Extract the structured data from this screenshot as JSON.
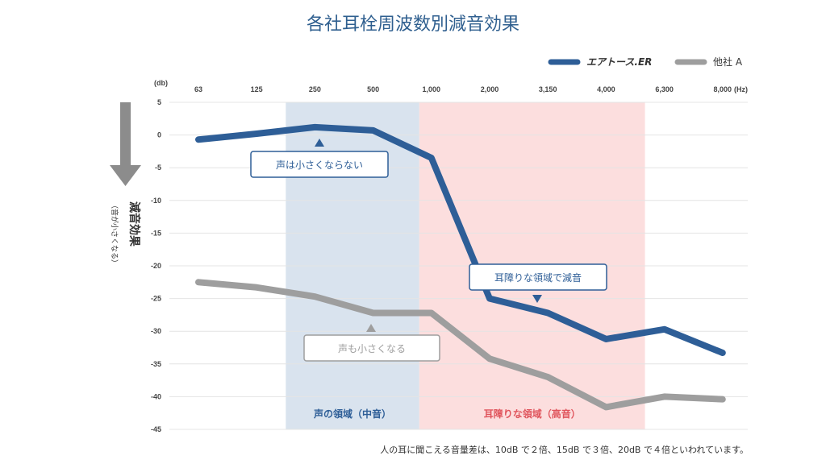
{
  "chart_data": {
    "type": "line",
    "title": "各社耳栓周波数別減音効果",
    "categories": [
      "63",
      "125",
      "250",
      "500",
      "1,000",
      "2,000",
      "3,150",
      "4,000",
      "6,300",
      "8,000"
    ],
    "x_unit": "(Hz)",
    "y_unit": "(db)",
    "ylim": [
      -45,
      5
    ],
    "yticks": [
      5,
      0,
      -5,
      -10,
      -15,
      -20,
      -25,
      -30,
      -35,
      -40,
      -45
    ],
    "grid": true,
    "legend_position": "top-right",
    "series": [
      {
        "name": "エアトース.ER",
        "color": "#2e5e97",
        "values": [
          -0.7,
          0.2,
          1.2,
          0.7,
          -3.5,
          -25,
          -27.2,
          -31.2,
          -29.7,
          -33.3
        ]
      },
      {
        "name": "他社 A",
        "color": "#9e9e9e",
        "values": [
          -22.5,
          -23.3,
          -24.7,
          -27.2,
          -27.2,
          -34.2,
          -37,
          -41.6,
          -40,
          -40.4
        ]
      }
    ],
    "regions": [
      {
        "label": "声の領域（中音）",
        "from": "250",
        "to": "1,000",
        "color": "#d9e3ee",
        "label_color": "#2e5e97"
      },
      {
        "label": "耳障りな領域（高音）",
        "from": "1,000",
        "to": "6,300",
        "color": "#fcdede",
        "label_color": "#e0555d"
      }
    ],
    "annotations": [
      {
        "text": "声は小さくならない",
        "color": "#2e5e97"
      },
      {
        "text": "耳障りな領域で減音",
        "color": "#2e5e97"
      },
      {
        "text": "声も小さくなる",
        "color": "#9e9e9e"
      }
    ]
  },
  "side_label": {
    "main": "減音効果",
    "sub": "（音が小さくなる）"
  },
  "note": "人の耳に聞こえる音量差は、10dB で２倍、15dB で３倍、20dB で４倍といわれています。"
}
